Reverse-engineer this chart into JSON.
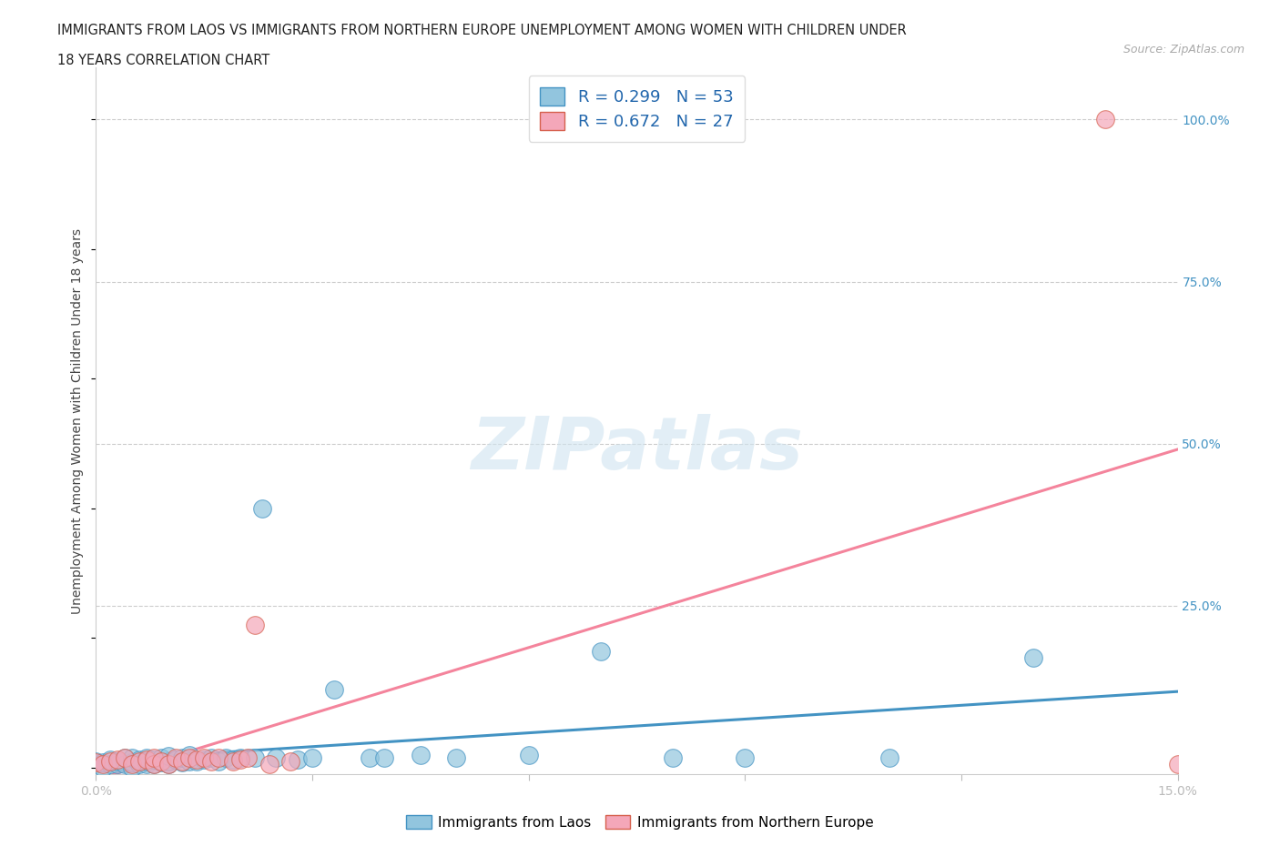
{
  "title_line1": "IMMIGRANTS FROM LAOS VS IMMIGRANTS FROM NORTHERN EUROPE UNEMPLOYMENT AMONG WOMEN WITH CHILDREN UNDER",
  "title_line2": "18 YEARS CORRELATION CHART",
  "source": "Source: ZipAtlas.com",
  "ylabel": "Unemployment Among Women with Children Under 18 years",
  "yticks": [
    0.0,
    0.25,
    0.5,
    0.75,
    1.0
  ],
  "ytick_labels": [
    "",
    "25.0%",
    "50.0%",
    "75.0%",
    "100.0%"
  ],
  "xlim": [
    0.0,
    0.15
  ],
  "ylim": [
    -0.01,
    1.08
  ],
  "watermark": "ZIPatlas",
  "laos_color": "#92c5de",
  "laos_edge": "#4393c3",
  "northern_europe_color": "#f4a7b9",
  "northern_europe_edge": "#d6604d",
  "laos_line_color": "#4393c3",
  "northern_europe_line_color": "#f4849c",
  "laos_R": 0.299,
  "laos_N": 53,
  "northern_europe_R": 0.672,
  "northern_europe_N": 27,
  "laos_x": [
    0.0,
    0.0,
    0.001,
    0.001,
    0.002,
    0.002,
    0.003,
    0.003,
    0.004,
    0.004,
    0.005,
    0.005,
    0.005,
    0.006,
    0.006,
    0.007,
    0.007,
    0.007,
    0.008,
    0.008,
    0.009,
    0.009,
    0.01,
    0.01,
    0.01,
    0.011,
    0.012,
    0.012,
    0.013,
    0.013,
    0.014,
    0.015,
    0.016,
    0.017,
    0.018,
    0.019,
    0.02,
    0.022,
    0.023,
    0.025,
    0.028,
    0.03,
    0.033,
    0.038,
    0.04,
    0.045,
    0.05,
    0.06,
    0.07,
    0.08,
    0.09,
    0.11,
    0.13
  ],
  "laos_y": [
    0.005,
    0.01,
    0.0,
    0.008,
    0.005,
    0.012,
    0.005,
    0.01,
    0.005,
    0.015,
    0.0,
    0.008,
    0.015,
    0.005,
    0.012,
    0.005,
    0.01,
    0.015,
    0.005,
    0.012,
    0.008,
    0.015,
    0.005,
    0.01,
    0.018,
    0.012,
    0.008,
    0.015,
    0.01,
    0.02,
    0.01,
    0.012,
    0.015,
    0.01,
    0.015,
    0.012,
    0.015,
    0.015,
    0.4,
    0.015,
    0.012,
    0.015,
    0.12,
    0.015,
    0.015,
    0.02,
    0.015,
    0.02,
    0.18,
    0.015,
    0.015,
    0.015,
    0.17
  ],
  "northern_europe_x": [
    0.0,
    0.001,
    0.002,
    0.003,
    0.004,
    0.005,
    0.006,
    0.007,
    0.008,
    0.008,
    0.009,
    0.01,
    0.011,
    0.012,
    0.013,
    0.014,
    0.015,
    0.016,
    0.017,
    0.019,
    0.02,
    0.021,
    0.022,
    0.024,
    0.027,
    0.14,
    0.15
  ],
  "northern_europe_y": [
    0.008,
    0.005,
    0.01,
    0.012,
    0.015,
    0.005,
    0.01,
    0.012,
    0.005,
    0.015,
    0.01,
    0.005,
    0.015,
    0.01,
    0.015,
    0.012,
    0.015,
    0.01,
    0.015,
    0.01,
    0.012,
    0.015,
    0.22,
    0.005,
    0.01,
    1.0,
    0.005
  ]
}
